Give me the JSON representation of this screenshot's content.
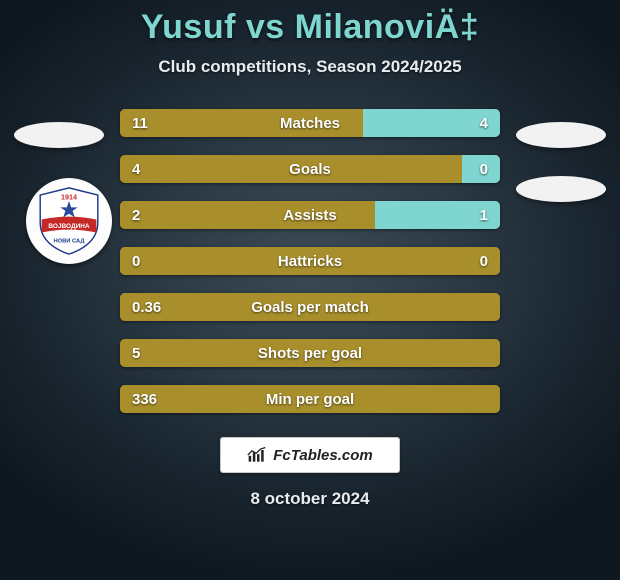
{
  "title": "Yusuf vs MilanoviÄ‡",
  "subtitle": "Club competitions, Season 2024/2025",
  "date": "8 october 2024",
  "footer_brand": "FcTables.com",
  "colors": {
    "left": "#a88f2c",
    "right": "#7fd6d0",
    "bar_bg": "#a88f2c",
    "title": "#7fd6d0",
    "text_light": "#e9edef"
  },
  "crest": {
    "year": "1914",
    "text_top": "ВОЈВОДИНА",
    "text_bottom": "НОВИ САД",
    "star_color": "#2a4b9b",
    "band_color": "#c62828",
    "bg_color": "#ffffff"
  },
  "rows": [
    {
      "label": "Matches",
      "left": "11",
      "right": "4",
      "left_pct": 64,
      "right_pct": 36
    },
    {
      "label": "Goals",
      "left": "4",
      "right": "0",
      "left_pct": 90,
      "right_pct": 10
    },
    {
      "label": "Assists",
      "left": "2",
      "right": "1",
      "left_pct": 67,
      "right_pct": 33
    },
    {
      "label": "Hattricks",
      "left": "0",
      "right": "0",
      "left_pct": 100,
      "right_pct": 0
    },
    {
      "label": "Goals per match",
      "left": "0.36",
      "right": "",
      "left_pct": 100,
      "right_pct": 0
    },
    {
      "label": "Shots per goal",
      "left": "5",
      "right": "",
      "left_pct": 100,
      "right_pct": 0
    },
    {
      "label": "Min per goal",
      "left": "336",
      "right": "",
      "left_pct": 100,
      "right_pct": 0
    }
  ]
}
